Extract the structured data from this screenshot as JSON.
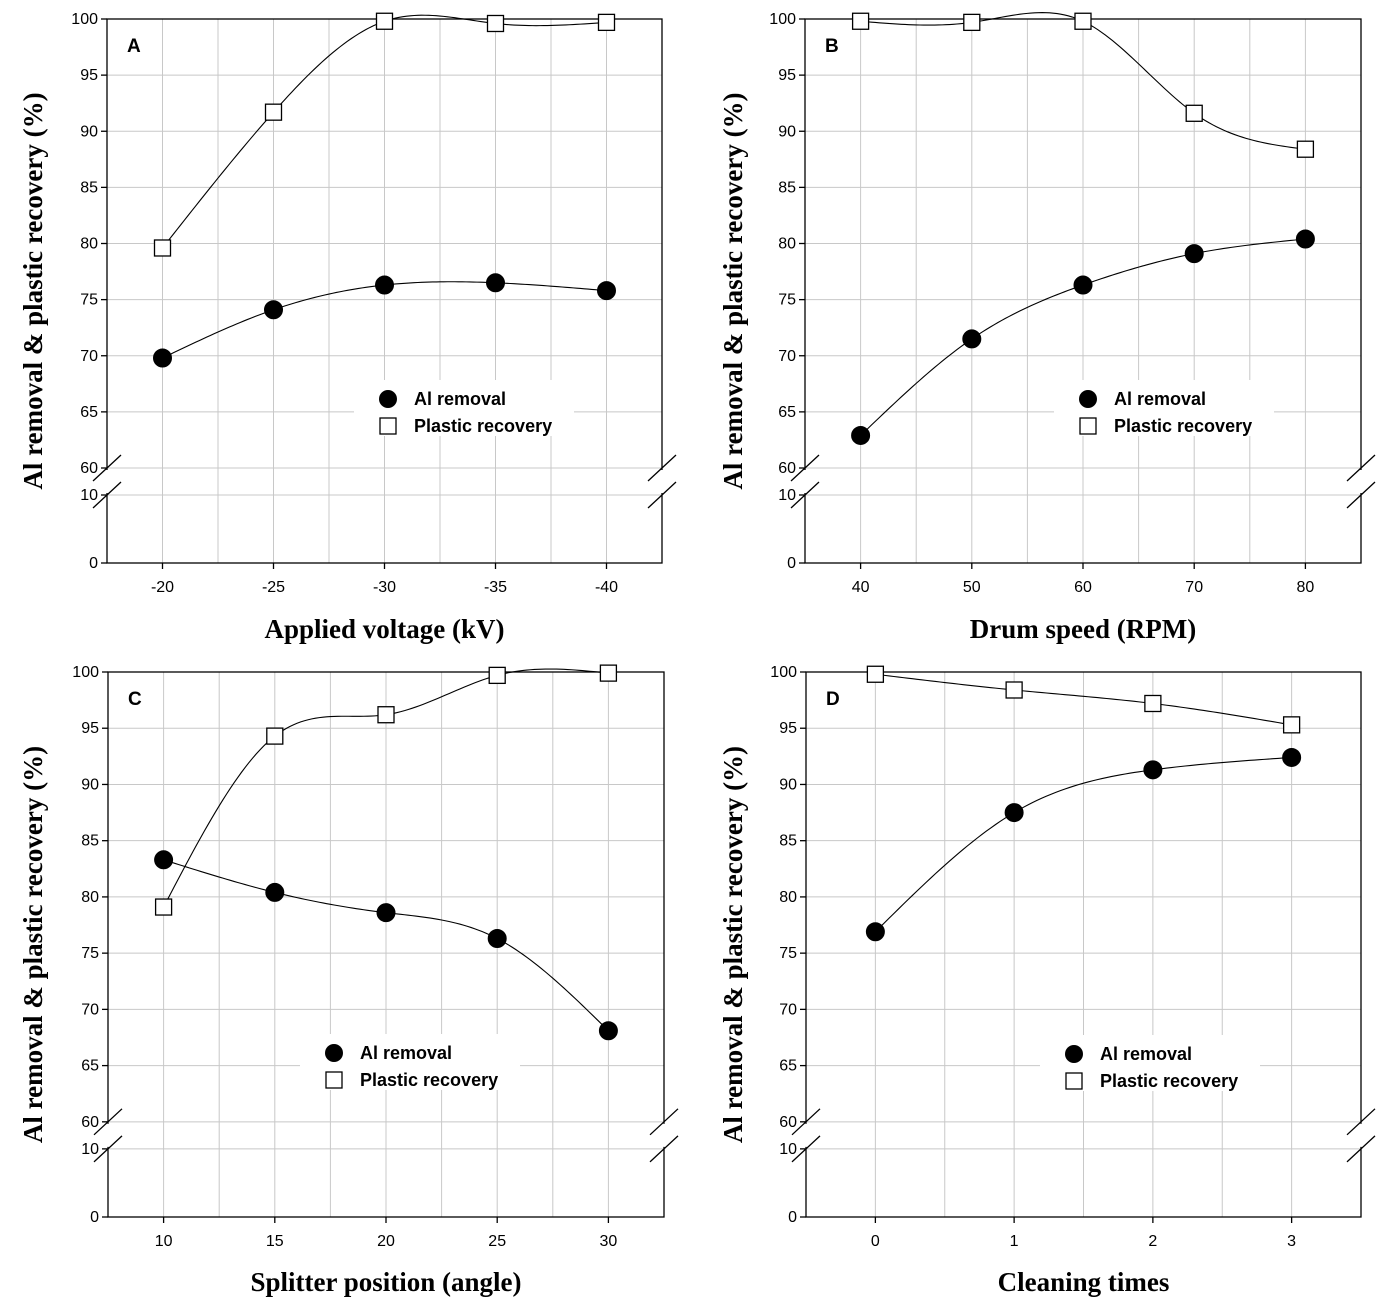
{
  "chart_data": [
    {
      "panel": "A",
      "type": "scatter",
      "xlabel": "Applied voltage (kV)",
      "ylabel": "Al removal & plastic recovery (%)",
      "x": [
        -20,
        -25,
        -30,
        -35,
        -40
      ],
      "x_tick_labels": [
        "-20",
        "-25",
        "-30",
        "-35",
        "-40"
      ],
      "y_ticks_upper": [
        "60",
        "65",
        "70",
        "75",
        "80",
        "85",
        "90",
        "95",
        "100"
      ],
      "y_ticks_lower": [
        "0",
        "10"
      ],
      "ylim_upper": [
        60,
        100
      ],
      "ylim_lower": [
        0,
        10
      ],
      "axis_break": true,
      "grid": true,
      "legend_position": "lower-right",
      "series": [
        {
          "name": "Al removal",
          "marker": "filled-circle",
          "values": [
            69.8,
            74.1,
            76.3,
            76.5,
            75.8
          ]
        },
        {
          "name": "Plastic recovery",
          "marker": "open-square",
          "values": [
            79.6,
            91.7,
            99.8,
            99.6,
            99.7
          ]
        }
      ]
    },
    {
      "panel": "B",
      "type": "scatter",
      "xlabel": "Drum speed (RPM)",
      "ylabel": "Al removal & plastic recovery (%)",
      "x": [
        40,
        50,
        60,
        70,
        80
      ],
      "x_tick_labels": [
        "40",
        "50",
        "60",
        "70",
        "80"
      ],
      "y_ticks_upper": [
        "60",
        "65",
        "70",
        "75",
        "80",
        "85",
        "90",
        "95",
        "100"
      ],
      "y_ticks_lower": [
        "0",
        "10"
      ],
      "ylim_upper": [
        60,
        100
      ],
      "ylim_lower": [
        0,
        10
      ],
      "axis_break": true,
      "grid": true,
      "legend_position": "lower-right",
      "series": [
        {
          "name": "Al removal",
          "marker": "filled-circle",
          "values": [
            62.9,
            71.5,
            76.3,
            79.1,
            80.4
          ]
        },
        {
          "name": "Plastic recovery",
          "marker": "open-square",
          "values": [
            99.8,
            99.7,
            99.8,
            91.6,
            88.4
          ]
        }
      ]
    },
    {
      "panel": "C",
      "type": "scatter",
      "xlabel": "Splitter position (angle)",
      "ylabel": "Al removal & plastic recovery (%)",
      "x": [
        10,
        15,
        20,
        25,
        30
      ],
      "x_tick_labels": [
        "10",
        "15",
        "20",
        "25",
        "30"
      ],
      "y_ticks_upper": [
        "60",
        "65",
        "70",
        "75",
        "80",
        "85",
        "90",
        "95",
        "100"
      ],
      "y_ticks_lower": [
        "0",
        "10"
      ],
      "ylim_upper": [
        60,
        100
      ],
      "ylim_lower": [
        0,
        10
      ],
      "axis_break": true,
      "grid": true,
      "legend_position": "lower-center",
      "series": [
        {
          "name": "Al removal",
          "marker": "filled-circle",
          "values": [
            83.3,
            80.4,
            78.6,
            76.3,
            68.1
          ]
        },
        {
          "name": "Plastic recovery",
          "marker": "open-square",
          "values": [
            79.1,
            94.3,
            96.2,
            99.7,
            99.9
          ]
        }
      ]
    },
    {
      "panel": "D",
      "type": "scatter",
      "xlabel": "Cleaning times",
      "ylabel": "Al removal & plastic recovery (%)",
      "x": [
        0,
        1,
        2,
        3
      ],
      "x_tick_labels": [
        "0",
        "1",
        "2",
        "3"
      ],
      "y_ticks_upper": [
        "60",
        "65",
        "70",
        "75",
        "80",
        "85",
        "90",
        "95",
        "100"
      ],
      "y_ticks_lower": [
        "0",
        "10"
      ],
      "ylim_upper": [
        60,
        100
      ],
      "ylim_lower": [
        0,
        10
      ],
      "axis_break": true,
      "grid": true,
      "legend_position": "lower-right",
      "series": [
        {
          "name": "Al removal",
          "marker": "filled-circle",
          "values": [
            76.9,
            87.5,
            91.3,
            92.4
          ]
        },
        {
          "name": "Plastic recovery",
          "marker": "open-square",
          "values": [
            99.8,
            98.4,
            97.2,
            95.3
          ]
        }
      ]
    }
  ]
}
